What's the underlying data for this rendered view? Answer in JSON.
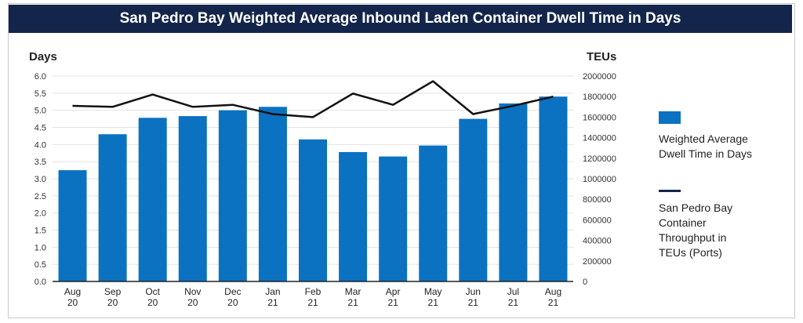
{
  "chart_data": {
    "type": "bar",
    "title": "San Pedro Bay Weighted Average Inbound Laden Container Dwell Time in Days",
    "categories": [
      [
        "Aug",
        "20"
      ],
      [
        "Sep",
        "20"
      ],
      [
        "Oct",
        "20"
      ],
      [
        "Nov",
        "20"
      ],
      [
        "Dec",
        "20"
      ],
      [
        "Jan",
        "21"
      ],
      [
        "Feb",
        "21"
      ],
      [
        "Mar",
        "21"
      ],
      [
        "Apr",
        "21"
      ],
      [
        "May",
        "21"
      ],
      [
        "Jun",
        "21"
      ],
      [
        "Jul",
        "21"
      ],
      [
        "Aug",
        "21"
      ]
    ],
    "series": [
      {
        "name": "Weighted Average Dwell Time in Days",
        "type": "bar",
        "axis": "left",
        "color": "#0b72c1",
        "values": [
          3.25,
          4.3,
          4.78,
          4.83,
          5.0,
          5.1,
          4.15,
          3.78,
          3.65,
          3.97,
          4.75,
          5.2,
          5.4
        ]
      },
      {
        "name": "San Pedro Bay Container Throughput in TEUs (Ports)",
        "type": "line",
        "axis": "right",
        "color": "#111111",
        "values": [
          1710000,
          1700000,
          1820000,
          1700000,
          1720000,
          1630000,
          1600000,
          1830000,
          1720000,
          1950000,
          1630000,
          1710000,
          1800000
        ]
      }
    ],
    "ylabel_left": "Days",
    "ylabel_right": "TEUs",
    "ylim_left": [
      0,
      6
    ],
    "ylim_right": [
      0,
      2000000
    ],
    "yticks_left": [
      "0.0",
      "0.5",
      "1.0",
      "1.5",
      "2.0",
      "2.5",
      "3.0",
      "3.5",
      "4.0",
      "4.5",
      "5.0",
      "5.5",
      "6.0"
    ],
    "yticks_right": [
      "0",
      "200000",
      "400000",
      "600000",
      "800000",
      "1000000",
      "1200000",
      "1400000",
      "1600000",
      "1800000",
      "2000000"
    ],
    "grid": true,
    "legend_position": "right"
  },
  "legend": {
    "bar_label_lines": [
      "Weighted Average",
      "Dwell Time in Days"
    ],
    "line_label_lines": [
      "San Pedro Bay",
      "Container",
      "Throughput in",
      "TEUs (Ports)"
    ]
  }
}
